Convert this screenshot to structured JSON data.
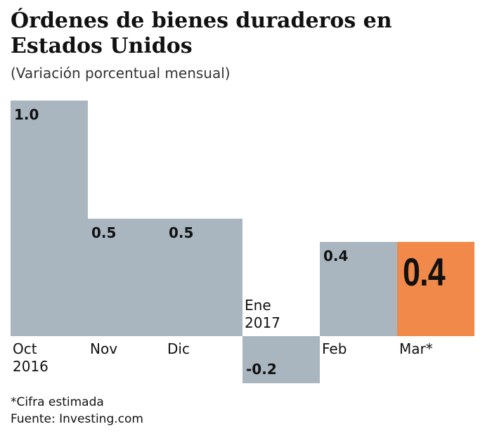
{
  "chart_data": {
    "type": "bar",
    "title": "Órdenes de bienes duraderos en Estados Unidos",
    "subtitle": "(Variación porcentual mensual)",
    "categories": [
      "Oct 2016",
      "Nov",
      "Dic",
      "Ene 2017",
      "Feb",
      "Mar*"
    ],
    "values": [
      1.0,
      0.5,
      0.5,
      -0.2,
      0.4,
      0.4
    ],
    "value_labels": [
      "1.0",
      "0.5",
      "0.5",
      "-0.2",
      "0.4",
      "0.4"
    ],
    "colors": [
      "#a9b6c0",
      "#a9b6c0",
      "#a9b6c0",
      "#a9b6c0",
      "#a9b6c0",
      "#f0894a"
    ],
    "ylim": [
      -0.2,
      1.0
    ],
    "notes": [
      "*Cifra estimada",
      "Fuente: Investing.com"
    ]
  }
}
